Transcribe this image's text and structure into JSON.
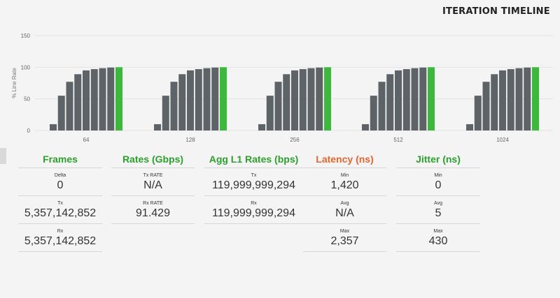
{
  "header": {
    "title": "ITERATION TIMELINE"
  },
  "colors": {
    "bar": "#5d6366",
    "bar_final": "#3cb83c",
    "grid": "#e2e2e2",
    "frames_head": "#2ca02c",
    "latency_head": "#e3662d"
  },
  "chart_data": {
    "type": "bar",
    "ylabel": "% Line Rate",
    "ylim": [
      0,
      150
    ],
    "yticks": [
      0,
      50,
      100,
      150
    ],
    "grid": true,
    "groups": [
      {
        "label": "64",
        "values": [
          10,
          55,
          77,
          89,
          95,
          97,
          98.5,
          99.5,
          100
        ]
      },
      {
        "label": "128",
        "values": [
          10,
          55,
          77,
          89,
          95,
          97,
          98.5,
          99.5,
          100
        ]
      },
      {
        "label": "256",
        "values": [
          10,
          55,
          77,
          89,
          95,
          97,
          98.5,
          99.5,
          100
        ]
      },
      {
        "label": "512",
        "values": [
          10,
          55,
          77,
          89,
          95,
          97,
          98.5,
          99.5,
          100
        ]
      },
      {
        "label": "1024",
        "values": [
          10,
          55,
          77,
          89,
          95,
          97,
          98.5,
          99.5,
          100
        ]
      }
    ]
  },
  "stats": {
    "frames": {
      "title": "Frames",
      "rows": [
        {
          "label": "Delta",
          "value": "0"
        },
        {
          "label": "Tx",
          "value": "5,357,142,852"
        },
        {
          "label": "Rx",
          "value": "5,357,142,852"
        }
      ]
    },
    "rates": {
      "title": "Rates (Gbps)",
      "rows": [
        {
          "label": "Tx RATE",
          "value": "N/A"
        },
        {
          "label": "Rx RATE",
          "value": "91.429"
        }
      ]
    },
    "agg": {
      "title": "Agg L1 Rates (bps)",
      "rows": [
        {
          "label": "Tx",
          "value": "119,999,999,294"
        },
        {
          "label": "Rx",
          "value": "119,999,999,294"
        }
      ]
    },
    "latency": {
      "title": "Latency (ns)",
      "rows": [
        {
          "label": "Min",
          "value": "1,420"
        },
        {
          "label": "Avg",
          "value": "N/A"
        },
        {
          "label": "Max",
          "value": "2,357"
        }
      ]
    },
    "jitter": {
      "title": "Jitter (ns)",
      "rows": [
        {
          "label": "Min",
          "value": "0"
        },
        {
          "label": "Avg",
          "value": "5"
        },
        {
          "label": "Max",
          "value": "430"
        }
      ]
    }
  }
}
